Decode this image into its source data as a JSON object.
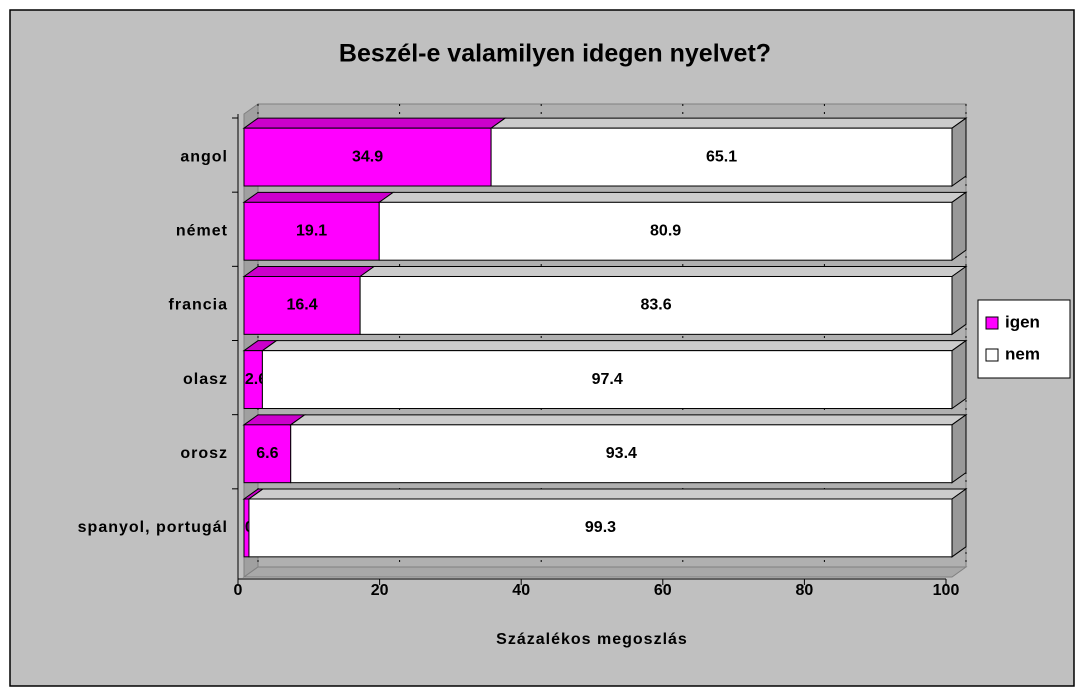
{
  "chart_data": {
    "type": "stacked_bar_horizontal_3d",
    "title": "Beszél-e valamilyen idegen nyelvet?",
    "categories": [
      "angol",
      "német",
      "francia",
      "olasz",
      "orosz",
      "spanyol, portugál"
    ],
    "series": [
      {
        "name": "igen",
        "color": "#ff00ff",
        "values": [
          34.9,
          19.1,
          16.4,
          2.6,
          6.6,
          0.7
        ]
      },
      {
        "name": "nem",
        "color": "#ffffff",
        "values": [
          65.1,
          80.9,
          83.6,
          97.4,
          93.4,
          99.3
        ]
      }
    ],
    "xlabel": "Százalékos megoszlás",
    "xlim": [
      0,
      100
    ],
    "xticks": [
      0,
      20,
      40,
      60,
      80,
      100
    ],
    "grid": true,
    "legend": "right"
  }
}
